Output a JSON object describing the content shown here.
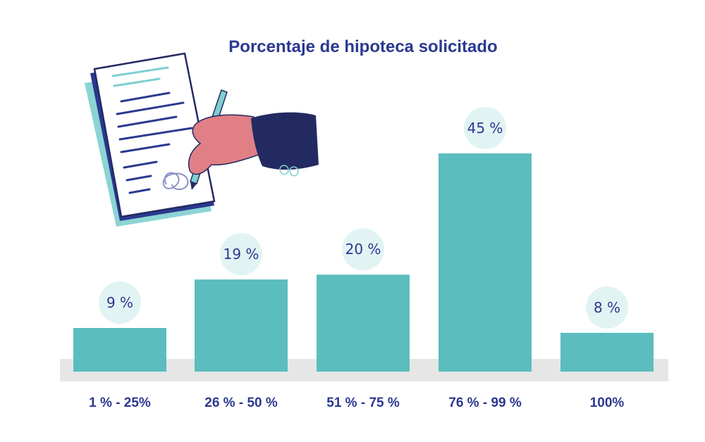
{
  "colors": {
    "bar": "#5bbdbe",
    "label_bubble": "#e2f3f3",
    "text": "#2b3990",
    "baseline_band": "#e6e6e6",
    "hand_skin": "#e07f86",
    "sleeve": "#232a62",
    "document": "#2b3990",
    "pen": "#7fcfcf"
  },
  "illustration": {
    "name": "hand-signing-document",
    "icon": "signing-document-illustration"
  },
  "chart_data": {
    "type": "bar",
    "title": "Porcentaje de hipoteca solicitado",
    "xlabel": "",
    "ylabel": "",
    "grid": false,
    "legend": "none",
    "ylim": [
      0,
      50
    ],
    "categories": [
      "1 % - 25%",
      "26 % - 50 %",
      "51 % - 75 %",
      "76 % - 99 %",
      "100%"
    ],
    "values": [
      9,
      19,
      20,
      45,
      8
    ],
    "value_labels": [
      "9 %",
      "19 %",
      "20 %",
      "45 %",
      "8 %"
    ]
  }
}
